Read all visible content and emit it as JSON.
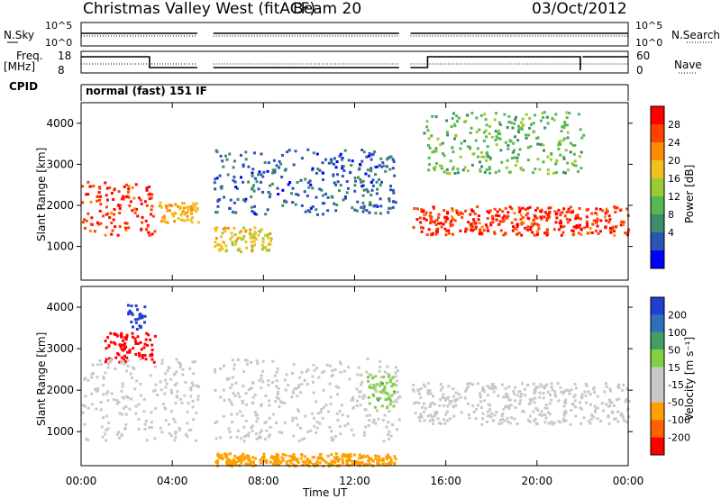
{
  "header": {
    "station": "Christmas Valley West (fitACF)",
    "beam": "Beam 20",
    "date": "03/Oct/2012"
  },
  "strips": {
    "nsky_label": "N.Sky",
    "nsearch_label": "N.Search",
    "noise_ticks": [
      "10^5",
      "10^0"
    ],
    "freq_label_1": "Freq.",
    "freq_label_2": "[MHz]",
    "freq_ticks": [
      "18",
      "8"
    ],
    "nave_label": "Nave",
    "nave_ticks": [
      "60",
      "0"
    ],
    "cpid_label": "CPID",
    "cpid_text": "normal (fast) 151 IF"
  },
  "colors": {
    "power": [
      "#0000ff",
      "#2a55b5",
      "#3f8a6a",
      "#55b855",
      "#9acb35",
      "#f0c020",
      "#ff8c00",
      "#ff4000",
      "#ff0000"
    ],
    "velocity": [
      "#1f3fd0",
      "#2f6fb8",
      "#3fa060",
      "#80d040",
      "#c8c8c8",
      "#c8c8c8",
      "#ffa000",
      "#ff6000",
      "#ff0000"
    ],
    "ground": "#c8c8c8"
  },
  "chart_data": [
    {
      "type": "heatmap",
      "panel": "power",
      "ylabel": "Slant Range [km]",
      "xlabel": "Time UT",
      "x_ticks": [
        "00:00",
        "04:00",
        "08:00",
        "12:00",
        "16:00",
        "20:00",
        "00:00"
      ],
      "y_ticks": [
        1000,
        2000,
        3000,
        4000
      ],
      "xlim_hours": [
        0,
        24
      ],
      "ylim_km": [
        180,
        4500
      ],
      "colorbar_label": "Power [dB]",
      "colorbar_ticks": [
        4,
        8,
        12,
        16,
        20,
        24,
        28
      ],
      "data_gaps_hours": [
        [
          3.3,
          3.4
        ],
        [
          5.15,
          5.8
        ],
        [
          13.95,
          14.45
        ]
      ],
      "features": [
        {
          "t_start": 0.0,
          "t_end": 3.2,
          "range_start_km": 1300,
          "range_end_km": 2600,
          "power_db": 26
        },
        {
          "t_start": 3.4,
          "t_end": 5.1,
          "range_start_km": 1600,
          "range_end_km": 2100,
          "power_db": 20
        },
        {
          "t_start": 5.8,
          "t_end": 8.3,
          "range_start_km": 900,
          "range_end_km": 1500,
          "power_db": 18
        },
        {
          "t_start": 5.8,
          "t_end": 13.8,
          "range_start_km": 1800,
          "range_end_km": 3400,
          "power_db": 6
        },
        {
          "t_start": 14.5,
          "t_end": 24.0,
          "range_start_km": 1300,
          "range_end_km": 2000,
          "power_db": 26
        },
        {
          "t_start": 15.0,
          "t_end": 22.0,
          "range_start_km": 2800,
          "range_end_km": 4300,
          "power_db": 12
        }
      ]
    },
    {
      "type": "heatmap",
      "panel": "velocity",
      "ylabel": "Slant Range [km]",
      "xlabel": "Time UT",
      "x_ticks": [
        "00:00",
        "04:00",
        "08:00",
        "12:00",
        "16:00",
        "20:00",
        "00:00"
      ],
      "y_ticks": [
        1000,
        2000,
        3000,
        4000
      ],
      "xlim_hours": [
        0,
        24
      ],
      "ylim_km": [
        180,
        4500
      ],
      "colorbar_label": "Velocity [m s⁻¹]",
      "colorbar_ticks": [
        200,
        100,
        50,
        15,
        -15,
        -50,
        -100,
        -200
      ],
      "features": [
        {
          "t_start": 2.0,
          "t_end": 2.8,
          "range_start_km": 3500,
          "range_end_km": 4100,
          "velocity_ms": 200
        },
        {
          "t_start": 1.0,
          "t_end": 3.2,
          "range_start_km": 2700,
          "range_end_km": 3400,
          "velocity_ms": -200
        },
        {
          "t_start": 0.0,
          "t_end": 14.0,
          "range_start_km": 800,
          "range_end_km": 2800,
          "velocity_ms": 0
        },
        {
          "t_start": 5.8,
          "t_end": 13.8,
          "range_start_km": 200,
          "range_end_km": 500,
          "velocity_ms": -50
        },
        {
          "t_start": 12.5,
          "t_end": 13.8,
          "range_start_km": 1600,
          "range_end_km": 2400,
          "velocity_ms": 30
        },
        {
          "t_start": 14.5,
          "t_end": 24.0,
          "range_start_km": 1200,
          "range_end_km": 2200,
          "velocity_ms": 0
        }
      ]
    }
  ]
}
